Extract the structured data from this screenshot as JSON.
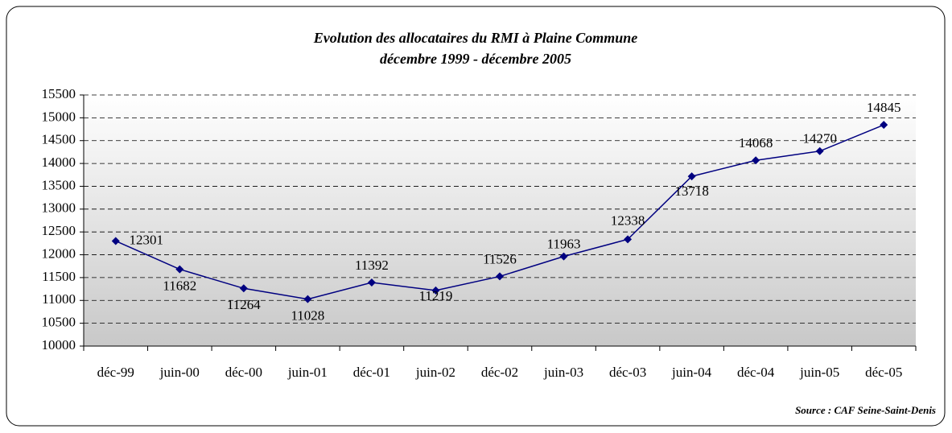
{
  "chart_data": {
    "type": "line",
    "title": "Evolution des allocataires du RMI à Plaine Commune",
    "subtitle": "décembre 1999 - décembre 2005",
    "source": "Source : CAF Seine-Saint-Denis",
    "categories": [
      "déc-99",
      "juin-00",
      "déc-00",
      "juin-01",
      "déc-01",
      "juin-02",
      "déc-02",
      "juin-03",
      "déc-03",
      "juin-04",
      "déc-04",
      "juin-05",
      "déc-05"
    ],
    "series": [
      {
        "color": "#000080",
        "values": [
          12301,
          11682,
          11264,
          11028,
          11392,
          11219,
          11526,
          11963,
          12338,
          13718,
          14068,
          14270,
          14845
        ]
      }
    ],
    "ylim": [
      10000,
      15500
    ],
    "yticks": [
      10000,
      10500,
      11000,
      11500,
      12000,
      12500,
      13000,
      13500,
      14000,
      14500,
      15000,
      15500
    ],
    "grid": true
  }
}
